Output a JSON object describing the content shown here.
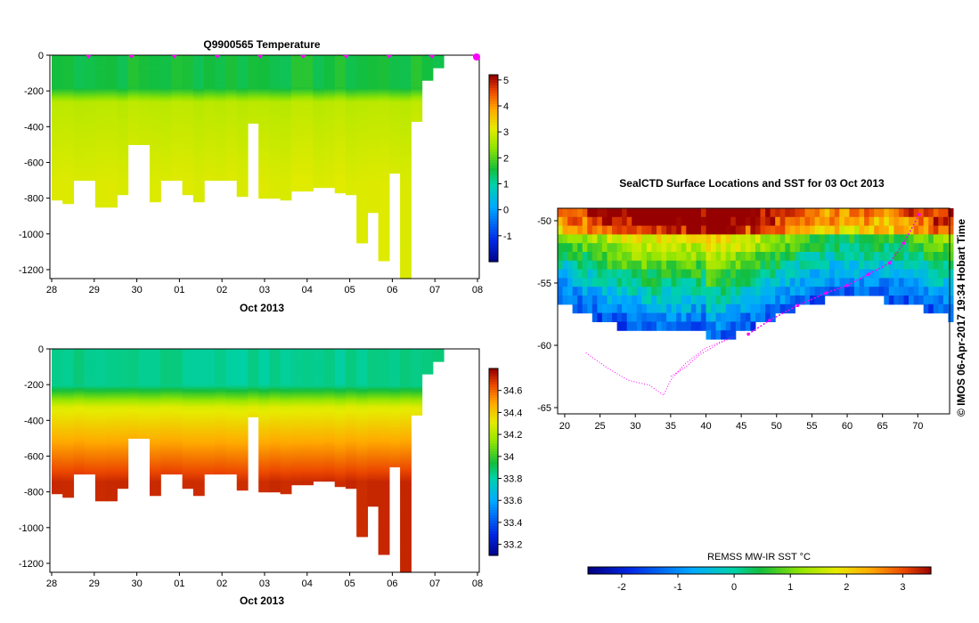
{
  "chart_data": [
    {
      "type": "heatmap",
      "title": "Q9900565  Temperature",
      "xlabel": "Oct 2013",
      "ylabel": "",
      "x_ticks": [
        "28",
        "29",
        "30",
        "01",
        "02",
        "03",
        "04",
        "05",
        "06",
        "07",
        "08"
      ],
      "y_ticks": [
        "0",
        "-200",
        "-400",
        "-600",
        "-800",
        "-1000",
        "-1200"
      ],
      "ylim": [
        -1250,
        0
      ],
      "colorbar_ticks": [
        "5",
        "4",
        "3",
        "2",
        "1",
        "0",
        "-1"
      ],
      "colorbar_range": [
        -2,
        5.2
      ],
      "profile_depths_m": [
        810,
        825,
        700,
        700,
        850,
        850,
        780,
        500,
        500,
        820,
        700,
        700,
        780,
        820,
        700,
        700,
        700,
        790,
        380,
        800,
        800,
        810,
        760,
        760,
        740,
        740,
        770,
        780,
        1050,
        880,
        1150,
        660,
        1250,
        370,
        140,
        70
      ],
      "vmin": -2,
      "vmax": 5.2
    },
    {
      "type": "heatmap",
      "title": "",
      "xlabel": "Oct 2013",
      "ylabel": "",
      "x_ticks": [
        "28",
        "29",
        "30",
        "01",
        "02",
        "03",
        "04",
        "05",
        "06",
        "07",
        "08"
      ],
      "y_ticks": [
        "0",
        "-200",
        "-400",
        "-600",
        "-800",
        "-1000",
        "-1200"
      ],
      "ylim": [
        -1250,
        0
      ],
      "colorbar_ticks": [
        "34.6",
        "34.4",
        "34.2",
        "34",
        "33.8",
        "33.6",
        "33.4",
        "33.2"
      ],
      "colorbar_range": [
        33.1,
        34.8
      ],
      "profile_depths_m": [
        810,
        825,
        700,
        700,
        850,
        850,
        780,
        500,
        500,
        820,
        700,
        700,
        780,
        820,
        700,
        700,
        700,
        790,
        380,
        800,
        800,
        810,
        760,
        760,
        740,
        740,
        770,
        780,
        1050,
        880,
        1150,
        660,
        1250,
        370,
        140,
        70
      ],
      "vmin": 33.1,
      "vmax": 34.8
    },
    {
      "type": "heatmap",
      "title": "SealCTD Surface Locations and SST for 03 Oct 2013",
      "xlabel": "",
      "ylabel": "",
      "x_ticks": [
        "20",
        "25",
        "30",
        "35",
        "40",
        "45",
        "50",
        "55",
        "60",
        "65",
        "70"
      ],
      "y_ticks": [
        "-50",
        "-55",
        "-60",
        "-65"
      ],
      "xlim": [
        19,
        74.5
      ],
      "ylim": [
        -65.5,
        -49
      ],
      "colorbar_label": "REMSS MW-IR SST °C",
      "colorbar_ticks": [
        "-2",
        "-1",
        "0",
        "1",
        "2",
        "3"
      ],
      "colorbar_range": [
        -2.6,
        3.5
      ],
      "track_points": [
        [
          70.2,
          -49.5
        ],
        [
          68,
          -51.8
        ],
        [
          66,
          -53.4
        ],
        [
          63,
          -54.3
        ],
        [
          60,
          -55.2
        ],
        [
          57,
          -55.8
        ],
        [
          53,
          -56.8
        ],
        [
          49,
          -58
        ],
        [
          46,
          -59.1
        ]
      ],
      "vmin": -2.6,
      "vmax": 3.5
    }
  ],
  "credit": "© IMOS 06-Apr-2017 19:34 Hobart Time"
}
